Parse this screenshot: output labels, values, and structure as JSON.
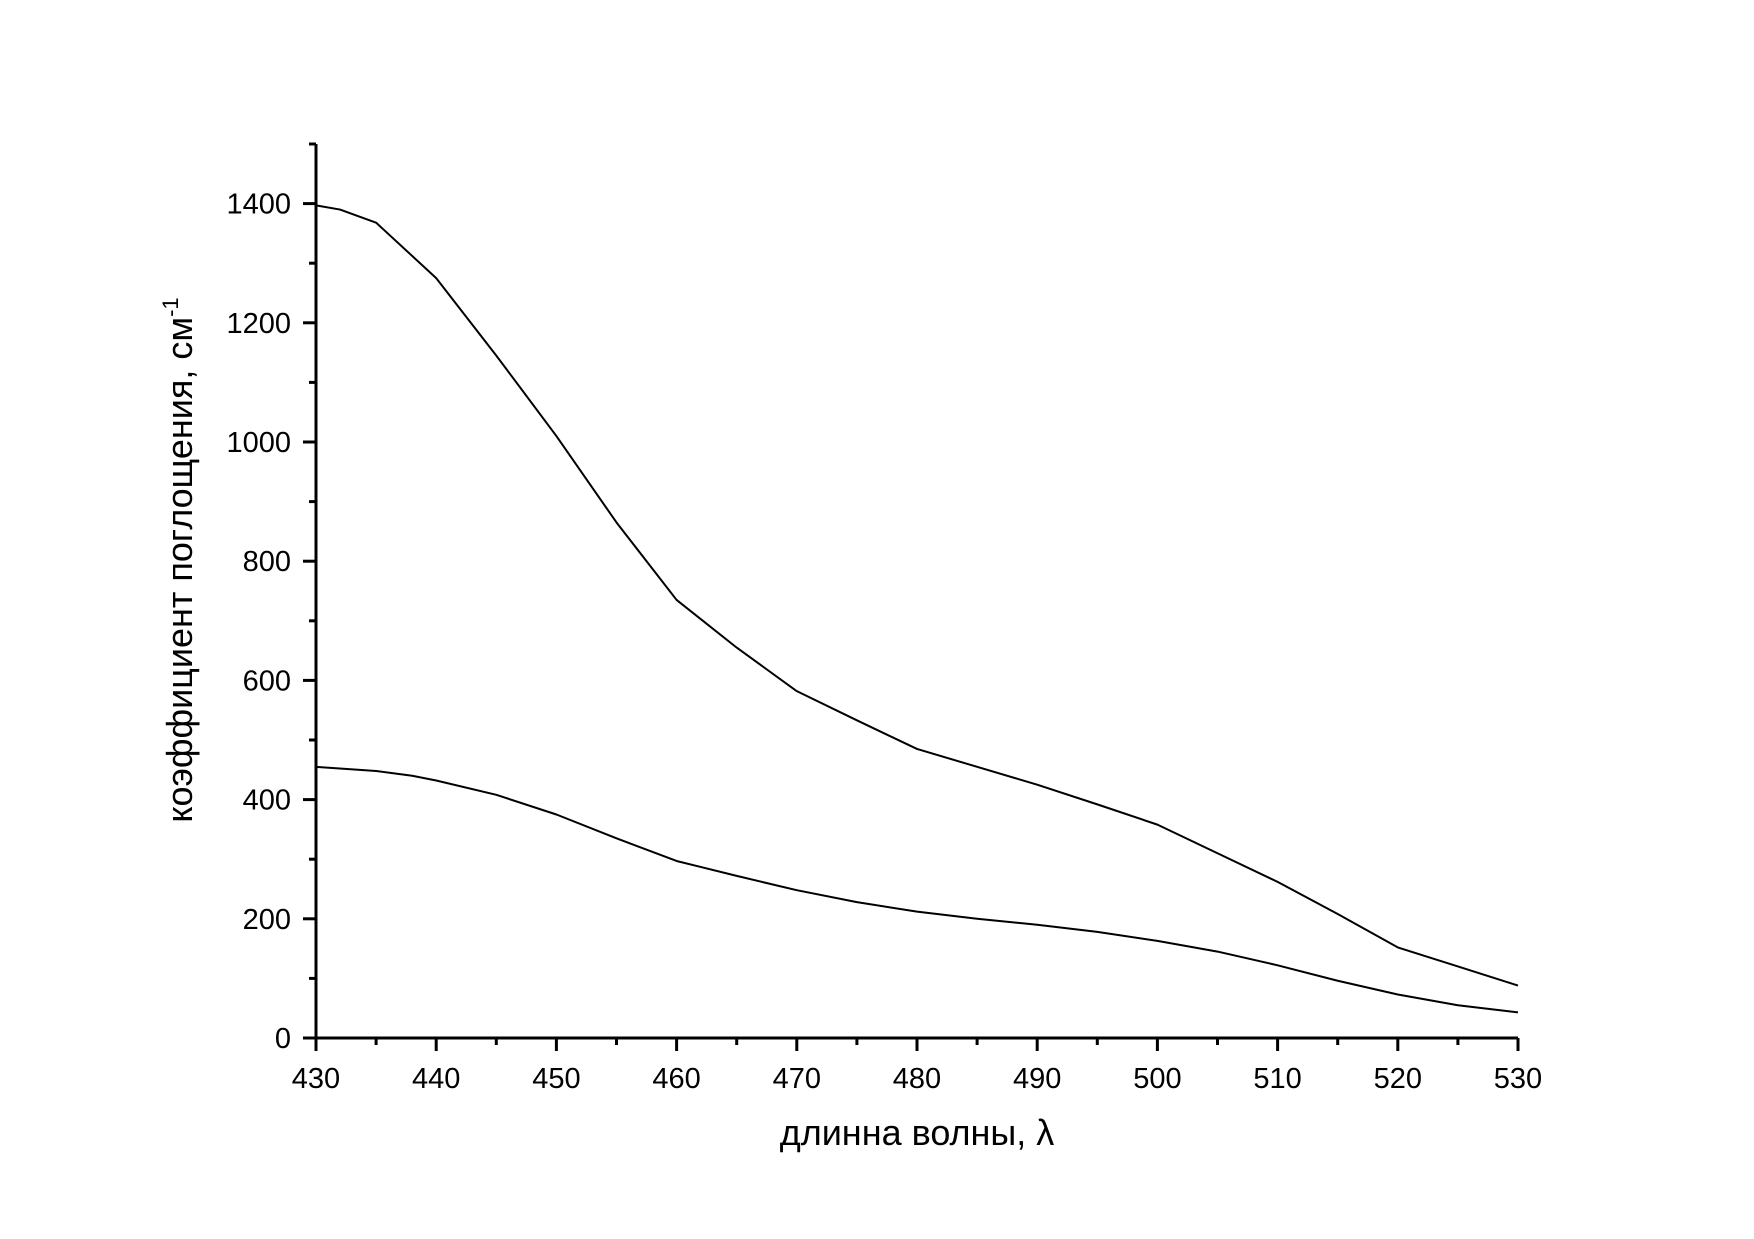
{
  "chart_data": {
    "type": "line",
    "xlabel": "длинна волны, λ",
    "ylabel": "коэффициент поглощения, см",
    "ylabel_superscript": "-1",
    "color": "#000000",
    "xlim": [
      430,
      530
    ],
    "ylim": [
      0,
      1500
    ],
    "xticks": [
      430,
      440,
      450,
      460,
      470,
      480,
      490,
      500,
      510,
      520,
      530
    ],
    "xminorticks": [
      435,
      445,
      455,
      465,
      475,
      485,
      495,
      505,
      515,
      525
    ],
    "yticks": [
      0,
      200,
      400,
      600,
      800,
      1000,
      1200,
      1400
    ],
    "yminorticks": [
      100,
      300,
      500,
      700,
      900,
      1100,
      1300,
      1500
    ],
    "grid": false,
    "series": [
      {
        "x": [
          430,
          432,
          435,
          440,
          445,
          450,
          455,
          460,
          465,
          470,
          475,
          480,
          485,
          490,
          495,
          500,
          505,
          510,
          515,
          520,
          525,
          530
        ],
        "values": [
          1397,
          1390,
          1368,
          1275,
          1145,
          1010,
          865,
          735,
          655,
          582,
          533,
          485,
          455,
          425,
          392,
          358,
          310,
          262,
          208,
          152,
          120,
          88
        ]
      },
      {
        "x": [
          430,
          435,
          438,
          440,
          445,
          450,
          455,
          460,
          462,
          465,
          470,
          475,
          480,
          485,
          490,
          495,
          500,
          505,
          510,
          515,
          520,
          525,
          530
        ],
        "values": [
          455,
          448,
          440,
          432,
          408,
          375,
          335,
          297,
          287,
          272,
          248,
          228,
          212,
          200,
          190,
          178,
          163,
          145,
          122,
          96,
          73,
          55,
          43
        ]
      }
    ]
  }
}
